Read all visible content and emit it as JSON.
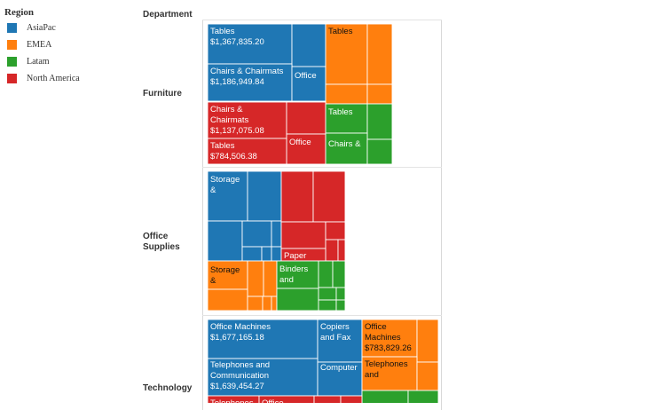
{
  "chart_data": {
    "type": "treemap",
    "title": "",
    "column_header": "Department",
    "legend": {
      "title": "Region",
      "entries": [
        {
          "name": "AsiaPac",
          "color": "#1f77b4"
        },
        {
          "name": "EMEA",
          "color": "#ff7f0e"
        },
        {
          "name": "Latam",
          "color": "#2ca02c"
        },
        {
          "name": "North America",
          "color": "#d62728"
        }
      ]
    },
    "rows": [
      {
        "department": "Furniture",
        "label_lines": [
          "Furniture"
        ]
      },
      {
        "department": "Office Supplies",
        "label_lines": [
          "Office",
          "Supplies"
        ]
      },
      {
        "department": "Technology",
        "label_lines": [
          "Technology"
        ]
      }
    ],
    "labeled_cells": [
      {
        "department": "Furniture",
        "region": "AsiaPac",
        "label_lines": [
          "Tables",
          "$1,367,835.20"
        ],
        "category": "Tables",
        "value": 1367835.2
      },
      {
        "department": "Furniture",
        "region": "AsiaPac",
        "label_lines": [
          "Chairs & Chairmats",
          "$1,186,949.84"
        ],
        "category": "Chairs & Chairmats",
        "value": 1186949.84
      },
      {
        "department": "Furniture",
        "region": "AsiaPac",
        "label_lines": [
          "Office"
        ],
        "category": "Office"
      },
      {
        "department": "Furniture",
        "region": "EMEA",
        "label_lines": [
          "Tables"
        ],
        "category": "Tables"
      },
      {
        "department": "Furniture",
        "region": "North America",
        "label_lines": [
          "Chairs &",
          "Chairmats",
          "$1,137,075.08"
        ],
        "category": "Chairs & Chairmats",
        "value": 1137075.08
      },
      {
        "department": "Furniture",
        "region": "North America",
        "label_lines": [
          "Office"
        ],
        "category": "Office"
      },
      {
        "department": "Furniture",
        "region": "North America",
        "label_lines": [
          "Tables",
          "$784,506.38"
        ],
        "category": "Tables",
        "value": 784506.38
      },
      {
        "department": "Furniture",
        "region": "Latam",
        "label_lines": [
          "Tables"
        ],
        "category": "Tables"
      },
      {
        "department": "Furniture",
        "region": "Latam",
        "label_lines": [
          "Chairs &"
        ],
        "category": "Chairs & Chairmats"
      },
      {
        "department": "Office Supplies",
        "region": "AsiaPac",
        "label_lines": [
          "Storage",
          "&"
        ],
        "category": "Storage & Organization"
      },
      {
        "department": "Office Supplies",
        "region": "North America",
        "label_lines": [
          "Paper"
        ],
        "category": "Paper"
      },
      {
        "department": "Office Supplies",
        "region": "EMEA",
        "label_lines": [
          "Storage",
          "&"
        ],
        "category": "Storage & Organization"
      },
      {
        "department": "Office Supplies",
        "region": "Latam",
        "label_lines": [
          "Binders",
          "and"
        ],
        "category": "Binders and Binder Accessories"
      },
      {
        "department": "Technology",
        "region": "AsiaPac",
        "label_lines": [
          "Office Machines",
          "$1,677,165.18"
        ],
        "category": "Office Machines",
        "value": 1677165.18
      },
      {
        "department": "Technology",
        "region": "AsiaPac",
        "label_lines": [
          "Copiers",
          "and Fax"
        ],
        "category": "Copiers and Fax"
      },
      {
        "department": "Technology",
        "region": "AsiaPac",
        "label_lines": [
          "Telephones and",
          "Communication",
          "$1,639,454.27"
        ],
        "category": "Telephones and Communication",
        "value": 1639454.27
      },
      {
        "department": "Technology",
        "region": "AsiaPac",
        "label_lines": [
          "Computer"
        ],
        "category": "Computer Peripherals"
      },
      {
        "department": "Technology",
        "region": "EMEA",
        "label_lines": [
          "Office",
          "Machines",
          "$783,829.26"
        ],
        "category": "Office Machines",
        "value": 783829.26
      },
      {
        "department": "Technology",
        "region": "EMEA",
        "label_lines": [
          "Telephones",
          "and"
        ],
        "category": "Telephones and Communication"
      },
      {
        "department": "Technology",
        "region": "North America",
        "label_lines": [
          "Telephones"
        ],
        "category": "Telephones and Communication"
      },
      {
        "department": "Technology",
        "region": "North America",
        "label_lines": [
          "Office"
        ],
        "category": "Office Machines"
      }
    ]
  }
}
